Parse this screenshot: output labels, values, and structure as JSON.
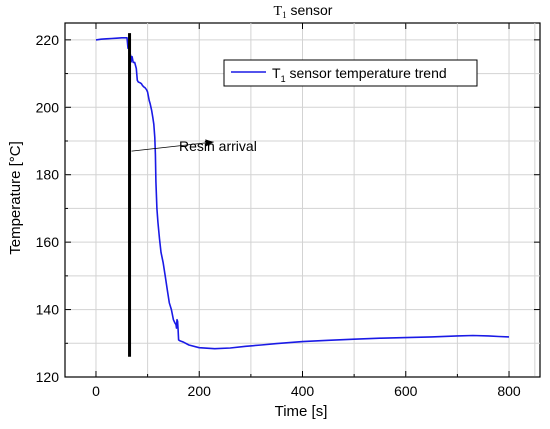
{
  "chart_data": {
    "type": "line",
    "title": {
      "main": "T",
      "sub": "1",
      "rest": " sensor"
    },
    "xlabel": "Time [s]",
    "ylabel": "Temperature [°C]",
    "xlim": [
      -60,
      860
    ],
    "ylim": [
      120,
      225
    ],
    "xticks": [
      0,
      200,
      400,
      600,
      800
    ],
    "yticks": [
      120,
      140,
      160,
      180,
      200,
      220
    ],
    "grid": true,
    "legend": {
      "placement": "top-right",
      "entries": [
        {
          "main": "T",
          "sub": "1",
          "rest": " sensor temperature trend"
        }
      ]
    },
    "annotation": {
      "text": "Resin arrival",
      "arrow_from": [
        65,
        187
      ],
      "arrow_to": [
        255,
        189.7
      ]
    },
    "marker_line": {
      "x": 65,
      "y_range": [
        126,
        222
      ]
    },
    "series": [
      {
        "color": "#1a1ae6",
        "x": [
          0,
          10,
          20,
          30,
          40,
          50,
          60,
          62,
          64,
          66,
          67,
          68,
          70,
          72,
          75,
          78,
          80,
          82,
          85,
          88,
          90,
          93,
          95,
          98,
          100,
          103,
          105,
          108,
          110,
          112,
          114,
          115,
          116,
          118,
          120,
          123,
          126,
          130,
          134,
          138,
          142,
          146,
          150,
          153,
          155,
          156,
          157,
          158,
          159,
          160,
          162,
          165,
          170,
          180,
          200,
          230,
          260,
          290,
          320,
          350,
          400,
          450,
          500,
          550,
          600,
          650,
          700,
          730,
          760,
          780,
          800
        ],
        "y": [
          220,
          220.2,
          220.3,
          220.4,
          220.5,
          220.6,
          220.6,
          217.5,
          219,
          214,
          215.5,
          213.5,
          215,
          213.3,
          213.3,
          211.5,
          208,
          207.5,
          207.3,
          207,
          206.5,
          206,
          205.8,
          205.2,
          204.5,
          202,
          201,
          199,
          197,
          195,
          191,
          186,
          178,
          170,
          166,
          161,
          157,
          154,
          150,
          146,
          142,
          140,
          137,
          136,
          135.5,
          134.5,
          137,
          136.5,
          134,
          131,
          130.8,
          130.6,
          130.3,
          129.5,
          128.7,
          128.4,
          128.6,
          129.1,
          129.5,
          129.9,
          130.5,
          130.9,
          131.2,
          131.5,
          131.7,
          131.9,
          132.2,
          132.3,
          132.2,
          132,
          131.9
        ]
      }
    ]
  }
}
